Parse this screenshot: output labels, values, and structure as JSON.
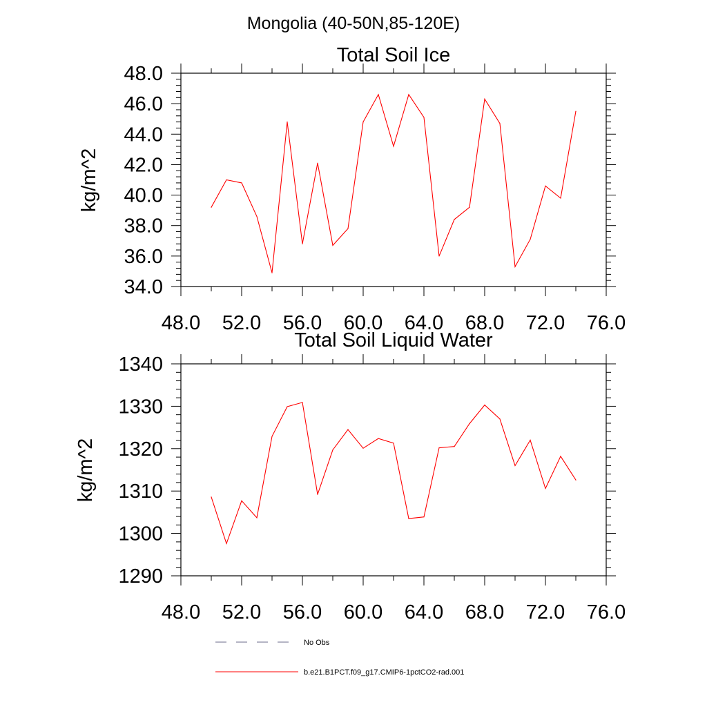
{
  "figure": {
    "suptitle": "Mongolia (40-50N,85-120E)"
  },
  "chart_data": [
    {
      "type": "line",
      "title": "Total Soil Ice",
      "xlabel": "",
      "ylabel": "kg/m^2",
      "xlim": [
        48,
        76
      ],
      "ylim": [
        34,
        48
      ],
      "xticks": [
        48,
        52,
        56,
        60,
        64,
        68,
        72,
        76
      ],
      "xtick_labels": [
        "48.0",
        "52.0",
        "56.0",
        "60.0",
        "64.0",
        "68.0",
        "72.0",
        "76.0"
      ],
      "yticks": [
        34,
        36,
        38,
        40,
        42,
        44,
        46,
        48
      ],
      "ytick_labels": [
        "34.0",
        "36.0",
        "38.0",
        "40.0",
        "42.0",
        "44.0",
        "46.0",
        "48.0"
      ],
      "grid": false,
      "series": [
        {
          "name": "b.e21.B1PCT.f09_g17.CMIP6-1pctCO2-rad.001",
          "color": "#ff0000",
          "x": [
            50,
            51,
            52,
            53,
            54,
            55,
            56,
            57,
            58,
            59,
            60,
            61,
            62,
            63,
            64,
            65,
            66,
            67,
            68,
            69,
            70,
            71,
            72,
            73,
            74
          ],
          "y": [
            39.2,
            41.0,
            40.8,
            38.6,
            34.9,
            44.8,
            36.8,
            42.1,
            36.7,
            37.8,
            44.8,
            46.6,
            43.2,
            46.6,
            45.1,
            36.0,
            38.4,
            39.2,
            46.3,
            44.7,
            35.3,
            37.1,
            40.6,
            39.8,
            45.5
          ]
        }
      ]
    },
    {
      "type": "line",
      "title": "Total Soil Liquid Water",
      "xlabel": "",
      "ylabel": "kg/m^2",
      "xlim": [
        48,
        76
      ],
      "ylim": [
        1290,
        1340
      ],
      "xticks": [
        48,
        52,
        56,
        60,
        64,
        68,
        72,
        76
      ],
      "xtick_labels": [
        "48.0",
        "52.0",
        "56.0",
        "60.0",
        "64.0",
        "68.0",
        "72.0",
        "76.0"
      ],
      "yticks": [
        1290,
        1300,
        1310,
        1320,
        1330,
        1340
      ],
      "ytick_labels": [
        "1290",
        "1300",
        "1310",
        "1320",
        "1330",
        "1340"
      ],
      "grid": false,
      "series": [
        {
          "name": "b.e21.B1PCT.f09_g17.CMIP6-1pctCO2-rad.001",
          "color": "#ff0000",
          "x": [
            50,
            51,
            52,
            53,
            54,
            55,
            56,
            57,
            58,
            59,
            60,
            61,
            62,
            63,
            64,
            65,
            66,
            67,
            68,
            69,
            70,
            71,
            72,
            73,
            74
          ],
          "y": [
            1308.6,
            1297.6,
            1307.7,
            1303.7,
            1322.9,
            1329.9,
            1330.9,
            1309.2,
            1319.7,
            1324.5,
            1320.1,
            1322.4,
            1321.3,
            1303.5,
            1303.9,
            1320.2,
            1320.5,
            1325.9,
            1330.3,
            1327.0,
            1316.0,
            1322.0,
            1310.6,
            1318.2,
            1312.6
          ]
        }
      ]
    }
  ],
  "legend": {
    "placement": "bottom",
    "entries": [
      {
        "label": "No Obs",
        "style": "dashed",
        "color": "#6a6a8a"
      },
      {
        "label": "b.e21.B1PCT.f09_g17.CMIP6-1pctCO2-rad.001",
        "style": "solid",
        "color": "#ff0000"
      }
    ]
  }
}
